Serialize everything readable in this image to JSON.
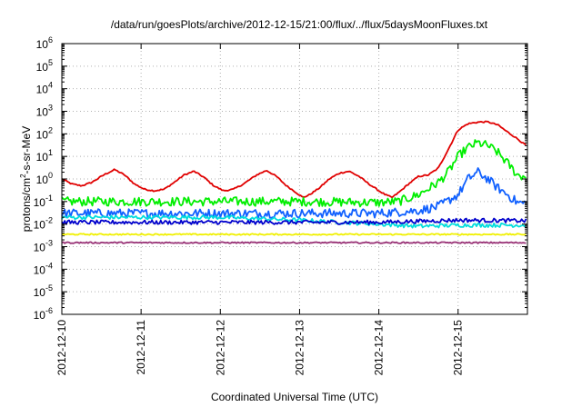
{
  "chart_data": {
    "type": "line",
    "title": "/data/run/goesPlots/archive/2012-12-15/21:00/flux/../flux/5daysMoonFluxes.txt",
    "xlabel": "Coordinated Universal Time (UTC)",
    "ylabel": {
      "pre": "protons/cm",
      "sup": "2",
      "post": "-s-sr-MeV"
    },
    "yscale": "log",
    "ylim": [
      1e-06,
      1000000.0
    ],
    "y_ticks": [
      {
        "value": 1e-06,
        "base": "10",
        "exp": "-6"
      },
      {
        "value": 1e-05,
        "base": "10",
        "exp": "-5"
      },
      {
        "value": 0.0001,
        "base": "10",
        "exp": "-4"
      },
      {
        "value": 0.001,
        "base": "10",
        "exp": "-3"
      },
      {
        "value": 0.01,
        "base": "10",
        "exp": "-2"
      },
      {
        "value": 0.1,
        "base": "10",
        "exp": "-1"
      },
      {
        "value": 1.0,
        "base": "10",
        "exp": "0"
      },
      {
        "value": 10.0,
        "base": "10",
        "exp": "1"
      },
      {
        "value": 100.0,
        "base": "10",
        "exp": "2"
      },
      {
        "value": 1000.0,
        "base": "10",
        "exp": "3"
      },
      {
        "value": 10000.0,
        "base": "10",
        "exp": "4"
      },
      {
        "value": 100000.0,
        "base": "10",
        "exp": "5"
      },
      {
        "value": 1000000.0,
        "base": "10",
        "exp": "6"
      }
    ],
    "xlim": [
      "2012-12-10",
      "2012-12-15T21:00"
    ],
    "x_ticks": [
      "2012-12-10",
      "2012-12-11",
      "2012-12-12",
      "2012-12-13",
      "2012-12-14",
      "2012-12-15"
    ],
    "grid": true,
    "legend": "none",
    "series": [
      {
        "color": "#e00000",
        "noise": "low",
        "points": [
          [
            "2012-12-10T00:00",
            1.0
          ],
          [
            "2012-12-10T03:00",
            0.6
          ],
          [
            "2012-12-10T06:00",
            0.5
          ],
          [
            "2012-12-10T09:00",
            0.7
          ],
          [
            "2012-12-10T13:00",
            1.6
          ],
          [
            "2012-12-10T16:00",
            2.6
          ],
          [
            "2012-12-10T19:00",
            1.5
          ],
          [
            "2012-12-10T22:00",
            0.6
          ],
          [
            "2012-12-11T01:00",
            0.35
          ],
          [
            "2012-12-11T04:00",
            0.3
          ],
          [
            "2012-12-11T07:00",
            0.35
          ],
          [
            "2012-12-11T10:00",
            0.7
          ],
          [
            "2012-12-11T13:00",
            1.5
          ],
          [
            "2012-12-11T16:00",
            2.2
          ],
          [
            "2012-12-11T19:00",
            1.2
          ],
          [
            "2012-12-11T22:00",
            0.5
          ],
          [
            "2012-12-12T01:00",
            0.3
          ],
          [
            "2012-12-12T04:00",
            0.35
          ],
          [
            "2012-12-12T07:00",
            0.6
          ],
          [
            "2012-12-12T11:00",
            1.5
          ],
          [
            "2012-12-12T14:00",
            2.4
          ],
          [
            "2012-12-12T17:00",
            1.3
          ],
          [
            "2012-12-12T20:00",
            0.5
          ],
          [
            "2012-12-12T23:00",
            0.25
          ],
          [
            "2012-12-13T01:00",
            0.15
          ],
          [
            "2012-12-13T03:00",
            0.2
          ],
          [
            "2012-12-13T06:00",
            0.4
          ],
          [
            "2012-12-13T09:00",
            1.0
          ],
          [
            "2012-12-13T12:00",
            1.8
          ],
          [
            "2012-12-13T15:00",
            2.2
          ],
          [
            "2012-12-13T18:00",
            1.3
          ],
          [
            "2012-12-13T21:00",
            0.6
          ],
          [
            "2012-12-14T00:00",
            0.3
          ],
          [
            "2012-12-14T02:00",
            0.2
          ],
          [
            "2012-12-14T04:00",
            0.15
          ],
          [
            "2012-12-14T06:00",
            0.25
          ],
          [
            "2012-12-14T09:00",
            0.6
          ],
          [
            "2012-12-14T12:00",
            1.3
          ],
          [
            "2012-12-14T15:00",
            1.5
          ],
          [
            "2012-12-14T18:00",
            3.0
          ],
          [
            "2012-12-14T21:00",
            20
          ],
          [
            "2012-12-15T00:00",
            150
          ],
          [
            "2012-12-15T03:00",
            280
          ],
          [
            "2012-12-15T06:00",
            330
          ],
          [
            "2012-12-15T09:00",
            340
          ],
          [
            "2012-12-15T12:00",
            250
          ],
          [
            "2012-12-15T15:00",
            120
          ],
          [
            "2012-12-15T18:00",
            60
          ],
          [
            "2012-12-15T20:00",
            35
          ],
          [
            "2012-12-15T21:00",
            30
          ]
        ]
      },
      {
        "color": "#00ee00",
        "noise": "high",
        "points": [
          [
            "2012-12-10T00:00",
            0.1
          ],
          [
            "2012-12-11T00:00",
            0.1
          ],
          [
            "2012-12-12T00:00",
            0.1
          ],
          [
            "2012-12-13T00:00",
            0.1
          ],
          [
            "2012-12-14T00:00",
            0.09
          ],
          [
            "2012-12-14T06:00",
            0.1
          ],
          [
            "2012-12-14T12:00",
            0.2
          ],
          [
            "2012-12-14T18:00",
            0.7
          ],
          [
            "2012-12-14T21:00",
            2.0
          ],
          [
            "2012-12-15T00:00",
            10
          ],
          [
            "2012-12-15T03:00",
            25
          ],
          [
            "2012-12-15T06:00",
            40
          ],
          [
            "2012-12-15T09:00",
            30
          ],
          [
            "2012-12-15T12:00",
            15
          ],
          [
            "2012-12-15T15:00",
            5
          ],
          [
            "2012-12-15T18:00",
            1.5
          ],
          [
            "2012-12-15T21:00",
            1.2
          ]
        ]
      },
      {
        "color": "#1060ff",
        "noise": "high",
        "points": [
          [
            "2012-12-10T00:00",
            0.03
          ],
          [
            "2012-12-11T00:00",
            0.03
          ],
          [
            "2012-12-12T00:00",
            0.03
          ],
          [
            "2012-12-13T00:00",
            0.03
          ],
          [
            "2012-12-14T00:00",
            0.03
          ],
          [
            "2012-12-14T12:00",
            0.04
          ],
          [
            "2012-12-14T18:00",
            0.06
          ],
          [
            "2012-12-15T00:00",
            0.2
          ],
          [
            "2012-12-15T03:00",
            1.0
          ],
          [
            "2012-12-15T06:00",
            2.0
          ],
          [
            "2012-12-15T09:00",
            1.0
          ],
          [
            "2012-12-15T12:00",
            0.4
          ],
          [
            "2012-12-15T15:00",
            0.2
          ],
          [
            "2012-12-15T18:00",
            0.09
          ],
          [
            "2012-12-15T21:00",
            0.08
          ]
        ]
      },
      {
        "color": "#00dddd",
        "noise": "med",
        "points": [
          [
            "2012-12-10T00:00",
            0.02
          ],
          [
            "2012-12-11T00:00",
            0.02
          ],
          [
            "2012-12-12T00:00",
            0.02
          ],
          [
            "2012-12-13T00:00",
            0.015
          ],
          [
            "2012-12-14T00:00",
            0.01
          ],
          [
            "2012-12-14T12:00",
            0.008
          ],
          [
            "2012-12-15T00:00",
            0.009
          ],
          [
            "2012-12-15T21:00",
            0.009
          ]
        ]
      },
      {
        "color": "#0000cc",
        "noise": "med",
        "points": [
          [
            "2012-12-10T00:00",
            0.012
          ],
          [
            "2012-12-11T00:00",
            0.012
          ],
          [
            "2012-12-12T00:00",
            0.012
          ],
          [
            "2012-12-13T00:00",
            0.012
          ],
          [
            "2012-12-14T00:00",
            0.012
          ],
          [
            "2012-12-15T00:00",
            0.015
          ],
          [
            "2012-12-15T21:00",
            0.014
          ]
        ]
      },
      {
        "color": "#f0f000",
        "noise": "low",
        "points": [
          [
            "2012-12-10T00:00",
            0.0035
          ],
          [
            "2012-12-15T21:00",
            0.0035
          ]
        ]
      },
      {
        "color": "#993377",
        "noise": "low",
        "points": [
          [
            "2012-12-10T00:00",
            0.0015
          ],
          [
            "2012-12-15T21:00",
            0.0015
          ]
        ]
      }
    ]
  }
}
